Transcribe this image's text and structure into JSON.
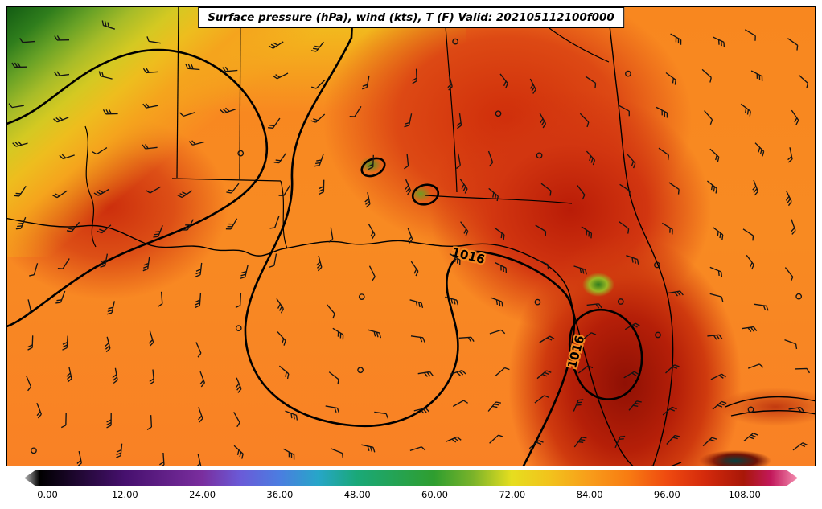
{
  "title_box": {
    "text": "Surface pressure (hPa), wind (kts), T (F) Valid: 202105112100f000"
  },
  "chart_data": {
    "type": "heatmap",
    "title": "Surface pressure (hPa), wind (kts), T (F) Valid: 202105112100f000",
    "fields": [
      "Surface pressure (hPa)",
      "wind (kts)",
      "T (F)"
    ],
    "valid": "202105112100f000",
    "region_shown": "Southeastern United States and Gulf of Mexico",
    "colorbar": {
      "orientation": "horizontal",
      "tick_labels": [
        "0.00",
        "12.00",
        "24.00",
        "36.00",
        "48.00",
        "60.00",
        "72.00",
        "84.00",
        "96.00",
        "108.00"
      ],
      "tick_values": [
        0,
        12,
        24,
        36,
        48,
        60,
        72,
        84,
        96,
        108
      ],
      "gradient_colors": [
        "#bdbdbd",
        "#000000",
        "#46106e",
        "#7a2e9e",
        "#6a5bd8",
        "#4b7de0",
        "#27a6c8",
        "#1aa878",
        "#2f9e2f",
        "#7ab32a",
        "#e6de1f",
        "#f2c21c",
        "#f89d1a",
        "#f87c12",
        "#ef4b10",
        "#d42a0c",
        "#a81708",
        "#c2185b",
        "#f48fb1"
      ]
    },
    "pressure_contours": {
      "labels": [
        "1016",
        "1016"
      ],
      "units": "hPa"
    },
    "wind": {
      "symbol": "barbs",
      "units": "kts"
    }
  }
}
